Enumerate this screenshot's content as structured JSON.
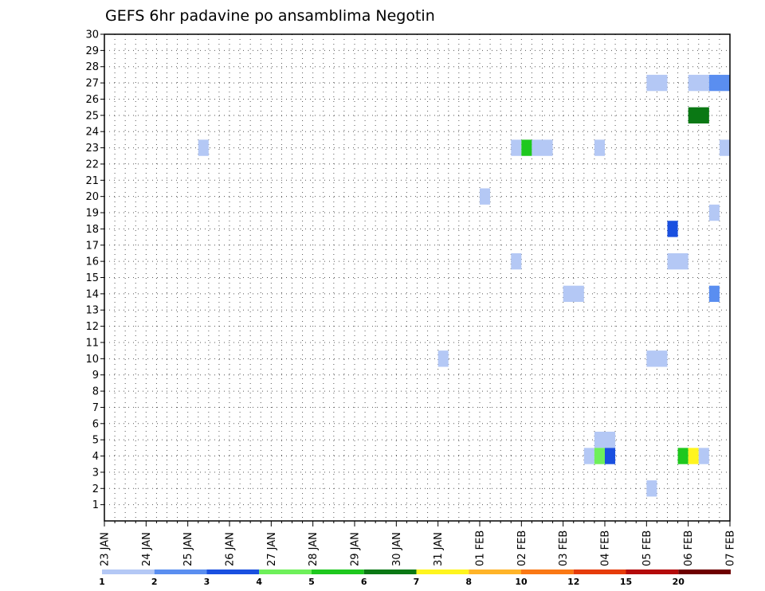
{
  "chart_data": {
    "type": "heatmap",
    "title": "GEFS 6hr padavine po ansamblima Negotin",
    "x_tick_labels": [
      "23 JAN",
      "24 JAN",
      "25 JAN",
      "26 JAN",
      "27 JAN",
      "28 JAN",
      "29 JAN",
      "30 JAN",
      "31 JAN",
      "01 FEB",
      "02 FEB",
      "03 FEB",
      "04 FEB",
      "05 FEB",
      "06 FEB",
      "07 FEB"
    ],
    "y_tick_labels": [
      "1",
      "2",
      "3",
      "4",
      "5",
      "6",
      "7",
      "8",
      "9",
      "10",
      "11",
      "12",
      "13",
      "14",
      "15",
      "16",
      "17",
      "18",
      "19",
      "20",
      "21",
      "22",
      "23",
      "24",
      "25",
      "26",
      "27",
      "28",
      "29",
      "30"
    ],
    "xlim_days": [
      0,
      15
    ],
    "ylim": [
      0,
      30
    ],
    "grid": true,
    "legend": {
      "placement": "bottom",
      "colors": [
        "#b4c8f5",
        "#5a8ef0",
        "#1a50e0",
        "#6ef05a",
        "#1ec81e",
        "#0a7814",
        "#fff51e",
        "#ffb428",
        "#fa7814",
        "#e63c0a",
        "#b40a0a",
        "#6e0000"
      ],
      "labels": [
        "1",
        "2",
        "3",
        "4",
        "5",
        "6",
        "7",
        "8",
        "10",
        "12",
        "15",
        "20"
      ]
    },
    "cells": [
      {
        "member": 27,
        "t_start": 13.0,
        "t_end": 13.5,
        "level": 1
      },
      {
        "member": 27,
        "t_start": 14.0,
        "t_end": 14.5,
        "level": 1
      },
      {
        "member": 27,
        "t_start": 14.5,
        "t_end": 15.0,
        "level": 2
      },
      {
        "member": 25,
        "t_start": 14.0,
        "t_end": 14.5,
        "level": 6
      },
      {
        "member": 23,
        "t_start": 2.25,
        "t_end": 2.5,
        "level": 1
      },
      {
        "member": 23,
        "t_start": 9.75,
        "t_end": 10.0,
        "level": 1
      },
      {
        "member": 23,
        "t_start": 10.0,
        "t_end": 10.25,
        "level": 5
      },
      {
        "member": 23,
        "t_start": 10.25,
        "t_end": 10.75,
        "level": 1
      },
      {
        "member": 23,
        "t_start": 11.75,
        "t_end": 12.0,
        "level": 1
      },
      {
        "member": 23,
        "t_start": 14.75,
        "t_end": 15.0,
        "level": 1
      },
      {
        "member": 20,
        "t_start": 9.0,
        "t_end": 9.25,
        "level": 1
      },
      {
        "member": 19,
        "t_start": 14.5,
        "t_end": 14.75,
        "level": 1
      },
      {
        "member": 18,
        "t_start": 13.5,
        "t_end": 13.75,
        "level": 3
      },
      {
        "member": 16,
        "t_start": 9.75,
        "t_end": 10.0,
        "level": 1
      },
      {
        "member": 16,
        "t_start": 13.5,
        "t_end": 14.0,
        "level": 1
      },
      {
        "member": 14,
        "t_start": 11.0,
        "t_end": 11.5,
        "level": 1
      },
      {
        "member": 14,
        "t_start": 14.5,
        "t_end": 14.75,
        "level": 2
      },
      {
        "member": 10,
        "t_start": 8.0,
        "t_end": 8.25,
        "level": 1
      },
      {
        "member": 10,
        "t_start": 13.0,
        "t_end": 13.5,
        "level": 1
      },
      {
        "member": 5,
        "t_start": 11.75,
        "t_end": 12.25,
        "level": 1
      },
      {
        "member": 4,
        "t_start": 11.5,
        "t_end": 11.75,
        "level": 1
      },
      {
        "member": 4,
        "t_start": 11.75,
        "t_end": 12.0,
        "level": 4
      },
      {
        "member": 4,
        "t_start": 12.0,
        "t_end": 12.25,
        "level": 3
      },
      {
        "member": 4,
        "t_start": 13.75,
        "t_end": 14.0,
        "level": 5
      },
      {
        "member": 4,
        "t_start": 14.0,
        "t_end": 14.25,
        "level": 7
      },
      {
        "member": 4,
        "t_start": 14.25,
        "t_end": 14.5,
        "level": 1
      },
      {
        "member": 2,
        "t_start": 13.0,
        "t_end": 13.25,
        "level": 1
      }
    ]
  }
}
